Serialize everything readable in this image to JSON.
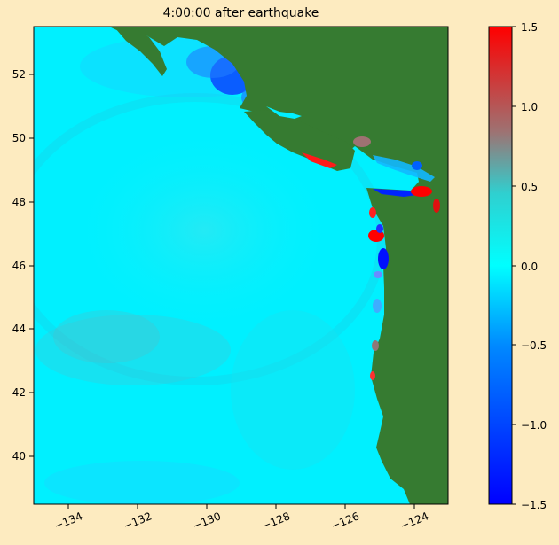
{
  "title": "4:00:00 after earthquake",
  "map": {
    "lon_range": [
      -135.1,
      -123.1
    ],
    "lat_range": [
      38.5,
      53.5
    ],
    "x_ticks": [
      "−134",
      "−132",
      "−130",
      "−128",
      "−126",
      "−124"
    ],
    "y_ticks": [
      "52",
      "50",
      "48",
      "46",
      "44",
      "42",
      "40"
    ],
    "land_color": "#367b31",
    "ocean_color": "#00f5ff"
  },
  "colorbar": {
    "range": [
      -1.5,
      1.5
    ],
    "ticks": [
      "1.5",
      "1.0",
      "0.5",
      "0.0",
      "−0.5",
      "−1.0",
      "−1.5"
    ],
    "colors": [
      "#ff0000",
      "#9e7272",
      "#2fd0d0",
      "#00ffff",
      "#0088ff",
      "#0000ff"
    ]
  }
}
